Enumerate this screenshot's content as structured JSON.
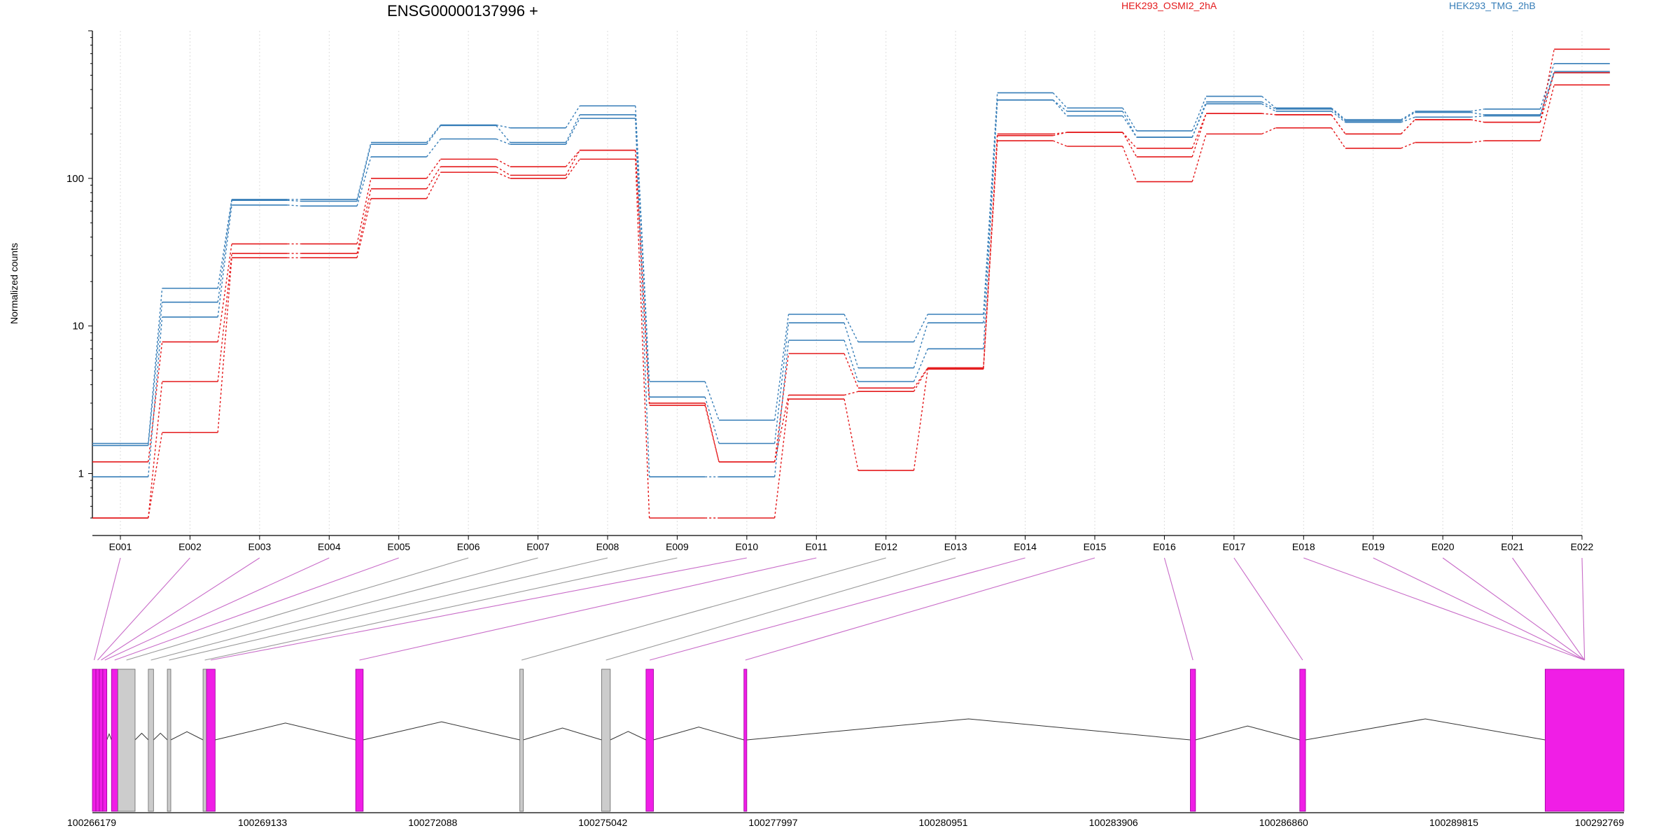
{
  "chart_data": {
    "type": "line",
    "title": "ENSG00000137996 +",
    "ylabel": "Normalized counts",
    "xlabel": "",
    "yscale": "log",
    "ylim": [
      0.5,
      1000
    ],
    "yticks": [
      1,
      10,
      100
    ],
    "ytick_labels": [
      "1",
      "10",
      "100"
    ],
    "grid": "vertical-dotted",
    "categories": [
      "E001",
      "E002",
      "E003",
      "E004",
      "E005",
      "E006",
      "E007",
      "E008",
      "E009",
      "E010",
      "E011",
      "E012",
      "E013",
      "E014",
      "E015",
      "E016",
      "E017",
      "E018",
      "E019",
      "E020",
      "E021",
      "E022"
    ],
    "legend": [
      {
        "label": "HEK293_OSMI2_2hA",
        "color": "#e41a1c"
      },
      {
        "label": "HEK293_TMG_2hB",
        "color": "#377eb8"
      }
    ],
    "series": [
      {
        "color": "#377eb8",
        "values": [
          1.6,
          18,
          72,
          72,
          175,
          230,
          220,
          310,
          4.2,
          2.3,
          12,
          7.8,
          12,
          380,
          300,
          210,
          360,
          300,
          250,
          285,
          295,
          600
        ]
      },
      {
        "color": "#377eb8",
        "values": [
          1.55,
          14.5,
          71,
          70,
          170,
          228,
          175,
          270,
          3.3,
          1.6,
          10.5,
          5.2,
          10.5,
          340,
          285,
          190,
          330,
          295,
          245,
          280,
          270,
          530
        ]
      },
      {
        "color": "#377eb8",
        "values": [
          0.95,
          11.5,
          66,
          65,
          140,
          185,
          170,
          255,
          0.95,
          0.95,
          8,
          4.2,
          7,
          340,
          265,
          190,
          320,
          285,
          240,
          260,
          265,
          520
        ]
      },
      {
        "color": "#e41a1c",
        "values": [
          1.2,
          7.8,
          36,
          36,
          100,
          135,
          120,
          155,
          3,
          1.2,
          6.5,
          3.8,
          5.2,
          200,
          205,
          160,
          275,
          270,
          200,
          250,
          240,
          750
        ]
      },
      {
        "color": "#e41a1c",
        "values": [
          0.5,
          4.2,
          31,
          31,
          85,
          120,
          105,
          155,
          2.9,
          1.2,
          3.4,
          3.6,
          5.2,
          195,
          205,
          140,
          275,
          270,
          200,
          250,
          240,
          520
        ]
      },
      {
        "color": "#e41a1c",
        "values": [
          0.5,
          1.9,
          29,
          29,
          73,
          110,
          100,
          135,
          0.5,
          0.5,
          3.2,
          1.05,
          5.1,
          180,
          165,
          95,
          200,
          220,
          160,
          175,
          180,
          430
        ]
      }
    ],
    "gene_model": {
      "coordinates": [
        "100266179",
        "100269133",
        "100272088",
        "100275042",
        "100277997",
        "100280951",
        "100283906",
        "100286860",
        "100289815",
        "100292769"
      ],
      "coord_min": 100266179,
      "coord_max": 100292769,
      "exons": [
        {
          "id": "E001",
          "start": 100266179,
          "end": 100266240,
          "state": "highlighted"
        },
        {
          "id": "E002",
          "start": 100266240,
          "end": 100266300,
          "state": "highlighted"
        },
        {
          "id": "E003",
          "start": 100266300,
          "end": 100266360,
          "state": "highlighted"
        },
        {
          "id": "E004",
          "start": 100266360,
          "end": 100266430,
          "state": "highlighted"
        },
        {
          "id": "E005",
          "start": 100266510,
          "end": 100266620,
          "state": "highlighted"
        },
        {
          "id": "E006",
          "start": 100266620,
          "end": 100266920,
          "state": "plain"
        },
        {
          "id": "E007",
          "start": 100267150,
          "end": 100267240,
          "state": "plain"
        },
        {
          "id": "E008",
          "start": 100267480,
          "end": 100267540,
          "state": "plain"
        },
        {
          "id": "E009",
          "start": 100268100,
          "end": 100268160,
          "state": "plain"
        },
        {
          "id": "E010",
          "start": 100268160,
          "end": 100268310,
          "state": "highlighted"
        },
        {
          "id": "E011",
          "start": 100270750,
          "end": 100270880,
          "state": "highlighted"
        },
        {
          "id": "E012",
          "start": 100273600,
          "end": 100273660,
          "state": "plain"
        },
        {
          "id": "E013",
          "start": 100275020,
          "end": 100275170,
          "state": "plain"
        },
        {
          "id": "E014",
          "start": 100275790,
          "end": 100275920,
          "state": "highlighted"
        },
        {
          "id": "E015",
          "start": 100277490,
          "end": 100277540,
          "state": "highlighted"
        },
        {
          "id": "E016",
          "start": 100285240,
          "end": 100285330,
          "state": "highlighted"
        },
        {
          "id": "E017",
          "start": 100287140,
          "end": 100287240,
          "state": "highlighted"
        },
        {
          "id": "E018",
          "start": 100291400,
          "end": 100292769,
          "state": "highlighted"
        }
      ]
    }
  }
}
